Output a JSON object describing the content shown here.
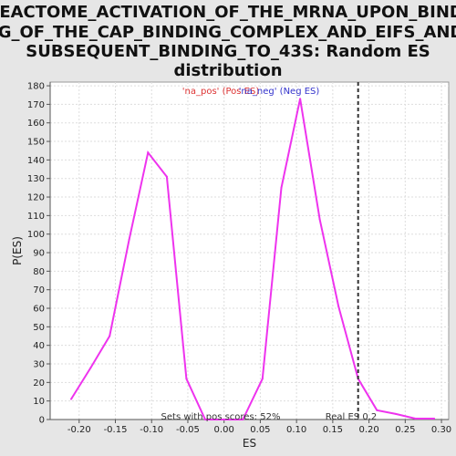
{
  "chart_data": {
    "type": "line",
    "title_lines": [
      "REACTOME_ACTIVATION_OF_THE_MRNA_UPON_BINDI",
      "NG_OF_THE_CAP_BINDING_COMPLEX_AND_EIFS_AND_",
      "SUBSEQUENT_BINDING_TO_43S: Random ES",
      "distribution"
    ],
    "xlabel": "ES",
    "ylabel": "P(ES)",
    "xlim": [
      -0.24,
      0.31
    ],
    "ylim": [
      0,
      182
    ],
    "xticks": [
      -0.2,
      -0.15,
      -0.1,
      -0.05,
      0.0,
      0.05,
      0.1,
      0.15,
      0.2,
      0.25,
      0.3
    ],
    "xtick_labels": [
      "-0.20",
      "-0.15",
      "-0.10",
      "-0.05",
      "0.00",
      "0.05",
      "0.10",
      "0.15",
      "0.20",
      "0.25",
      "0.30"
    ],
    "yticks": [
      0,
      10,
      20,
      30,
      40,
      50,
      60,
      70,
      80,
      90,
      100,
      110,
      120,
      130,
      140,
      150,
      160,
      170,
      180
    ],
    "grid": true,
    "line_color": "#ee33ee",
    "series": [
      {
        "x": [
          -0.211,
          -0.184,
          -0.158,
          -0.131,
          -0.105,
          -0.079,
          -0.052,
          -0.026,
          0.0,
          0.026,
          0.053,
          0.079,
          0.105,
          0.132,
          0.158,
          0.185,
          0.211,
          0.237,
          0.264,
          0.29
        ],
        "values": [
          11,
          28,
          45,
          97,
          144,
          131,
          22,
          0,
          0,
          0,
          22,
          125,
          173,
          108,
          61,
          22,
          5,
          3,
          0.5,
          0.5
        ]
      }
    ],
    "real_es_line": {
      "x": 0.185,
      "color": "#333333",
      "style": "dashed"
    },
    "annotations": {
      "na_pos": {
        "text": "'na_pos' (Pos ES)",
        "color": "#dd3333"
      },
      "na_neg": {
        "text": "'na_neg' (Neg ES)",
        "color": "#3333cc"
      },
      "sets_pos": {
        "text": "Sets with pos scores: 52%",
        "color": "#333333"
      },
      "real_es": {
        "text": "Real ES 0.2",
        "color": "#333333"
      }
    }
  }
}
